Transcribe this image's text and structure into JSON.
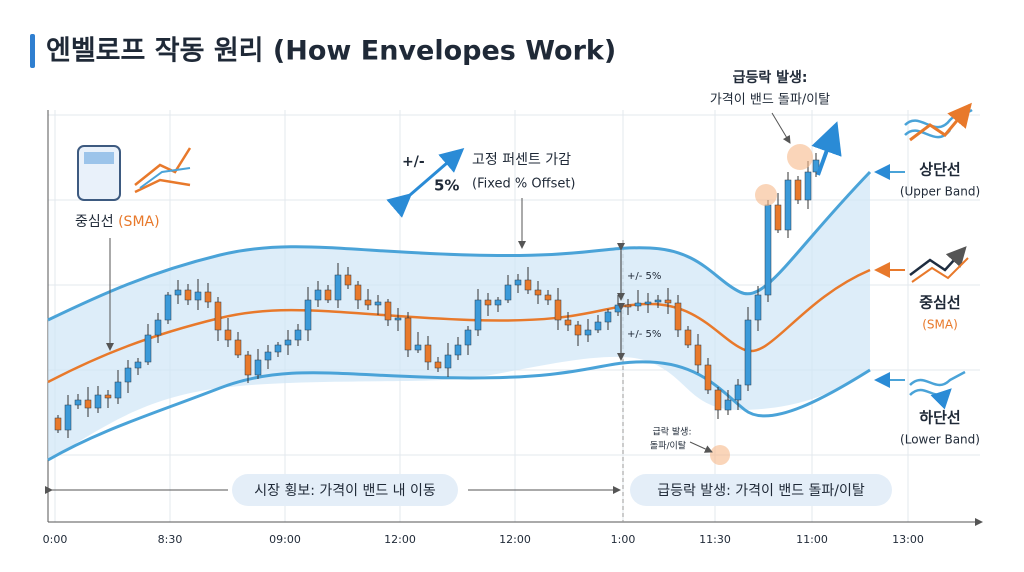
{
  "title": "엔벨로프 작동 원리 (How Envelopes Work)",
  "center_note": {
    "name": "중심선",
    "sub": "(SMA)"
  },
  "offset_note": {
    "sign": "+/-",
    "percent": "5%",
    "title": "고정 퍼센트 가감",
    "subtitle": "(Fixed % Offset)"
  },
  "band_markers": [
    "+/- 5%",
    "+/- 5%"
  ],
  "breakout_note": {
    "title": "급등락 발생:",
    "subtitle": "가격이 밴드 돌파/이탈"
  },
  "breakdown_note": {
    "title": "급락 발생:",
    "subtitle": "돌파/이탈"
  },
  "legend": [
    {
      "name": "상단선",
      "sub": "(Upper Band)"
    },
    {
      "name": "중심선",
      "sub": "(SMA)"
    },
    {
      "name": "하단선",
      "sub": "(Lower Band)"
    }
  ],
  "phases": [
    "시장 횡보: 가격이 밴드 내 이동",
    "급등락 발생: 가격이 밴드 돌파/이탈"
  ],
  "x_labels": [
    "0:00",
    "8:30",
    "09:00",
    "12:00",
    "12:00",
    "1:00",
    "11:30",
    "11:00",
    "13:00"
  ]
}
